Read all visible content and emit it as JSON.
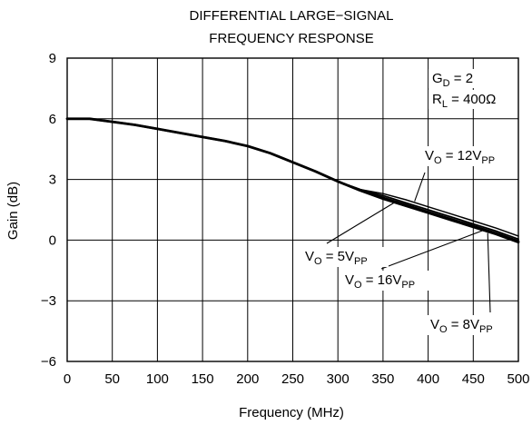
{
  "chart_data": {
    "type": "line",
    "title_lines": [
      "DIFFERENTIAL LARGE−SIGNAL",
      "FREQUENCY RESPONSE"
    ],
    "xlabel": "Frequency (MHz)",
    "ylabel": "Gain (dB)",
    "xlim": [
      0,
      500
    ],
    "ylim": [
      -6,
      9
    ],
    "x_ticks": [
      0,
      50,
      100,
      150,
      200,
      250,
      300,
      350,
      400,
      450,
      500
    ],
    "x_tick_labels": [
      "0",
      "50",
      "100",
      "150",
      "200",
      "250",
      "300",
      "350",
      "400",
      "450",
      "500"
    ],
    "y_ticks": [
      -6,
      -3,
      0,
      3,
      6,
      9
    ],
    "y_tick_labels": [
      "−6",
      "−3",
      "0",
      "3",
      "6",
      "9"
    ],
    "grid": true,
    "conditions": [
      {
        "main": "G",
        "sub": "D",
        "rest": " = 2"
      },
      {
        "main": "R",
        "sub": "L",
        "rest": " = 400Ω"
      }
    ],
    "series": [
      {
        "name": "V_O = 12V_PP",
        "label": {
          "main": "V",
          "sub": "O",
          "mid": " = 12V",
          "sub2": "PP"
        },
        "x": [
          0,
          25,
          50,
          75,
          100,
          125,
          150,
          175,
          200,
          225,
          250,
          275,
          300,
          325,
          350,
          375,
          400,
          425,
          450,
          475,
          500
        ],
        "y": [
          6.0,
          6.0,
          5.85,
          5.7,
          5.5,
          5.3,
          5.1,
          4.9,
          4.65,
          4.3,
          3.85,
          3.4,
          2.9,
          2.5,
          2.3,
          2.0,
          1.65,
          1.3,
          0.95,
          0.6,
          0.2
        ]
      },
      {
        "name": "V_O = 5V_PP",
        "label": {
          "main": "V",
          "sub": "O",
          "mid": " = 5V",
          "sub2": "PP"
        },
        "x": [
          0,
          25,
          50,
          75,
          100,
          125,
          150,
          175,
          200,
          225,
          250,
          275,
          300,
          325,
          350,
          375,
          400,
          425,
          450,
          475,
          500
        ],
        "y": [
          6.0,
          6.0,
          5.85,
          5.7,
          5.5,
          5.3,
          5.1,
          4.9,
          4.65,
          4.3,
          3.85,
          3.4,
          2.9,
          2.5,
          2.2,
          1.85,
          1.5,
          1.15,
          0.8,
          0.45,
          0.05
        ]
      },
      {
        "name": "V_O = 16V_PP",
        "label": {
          "main": "V",
          "sub": "O",
          "mid": " = 16V",
          "sub2": "PP"
        },
        "x": [
          0,
          25,
          50,
          75,
          100,
          125,
          150,
          175,
          200,
          225,
          250,
          275,
          300,
          325,
          350,
          375,
          400,
          425,
          450,
          475,
          500
        ],
        "y": [
          6.0,
          6.0,
          5.85,
          5.7,
          5.5,
          5.3,
          5.1,
          4.9,
          4.65,
          4.3,
          3.85,
          3.4,
          2.9,
          2.45,
          2.05,
          1.7,
          1.35,
          1.0,
          0.65,
          0.3,
          -0.1
        ]
      },
      {
        "name": "V_O = 8V_PP",
        "label": {
          "main": "V",
          "sub": "O",
          "mid": " = 8V",
          "sub2": "PP"
        },
        "x": [
          0,
          25,
          50,
          75,
          100,
          125,
          150,
          175,
          200,
          225,
          250,
          275,
          300,
          325,
          350,
          375,
          400,
          425,
          450,
          475,
          500
        ],
        "y": [
          6.0,
          6.0,
          5.85,
          5.7,
          5.5,
          5.3,
          5.1,
          4.9,
          4.65,
          4.3,
          3.85,
          3.4,
          2.9,
          2.45,
          2.1,
          1.75,
          1.4,
          1.05,
          0.7,
          0.35,
          -0.05
        ]
      }
    ]
  }
}
